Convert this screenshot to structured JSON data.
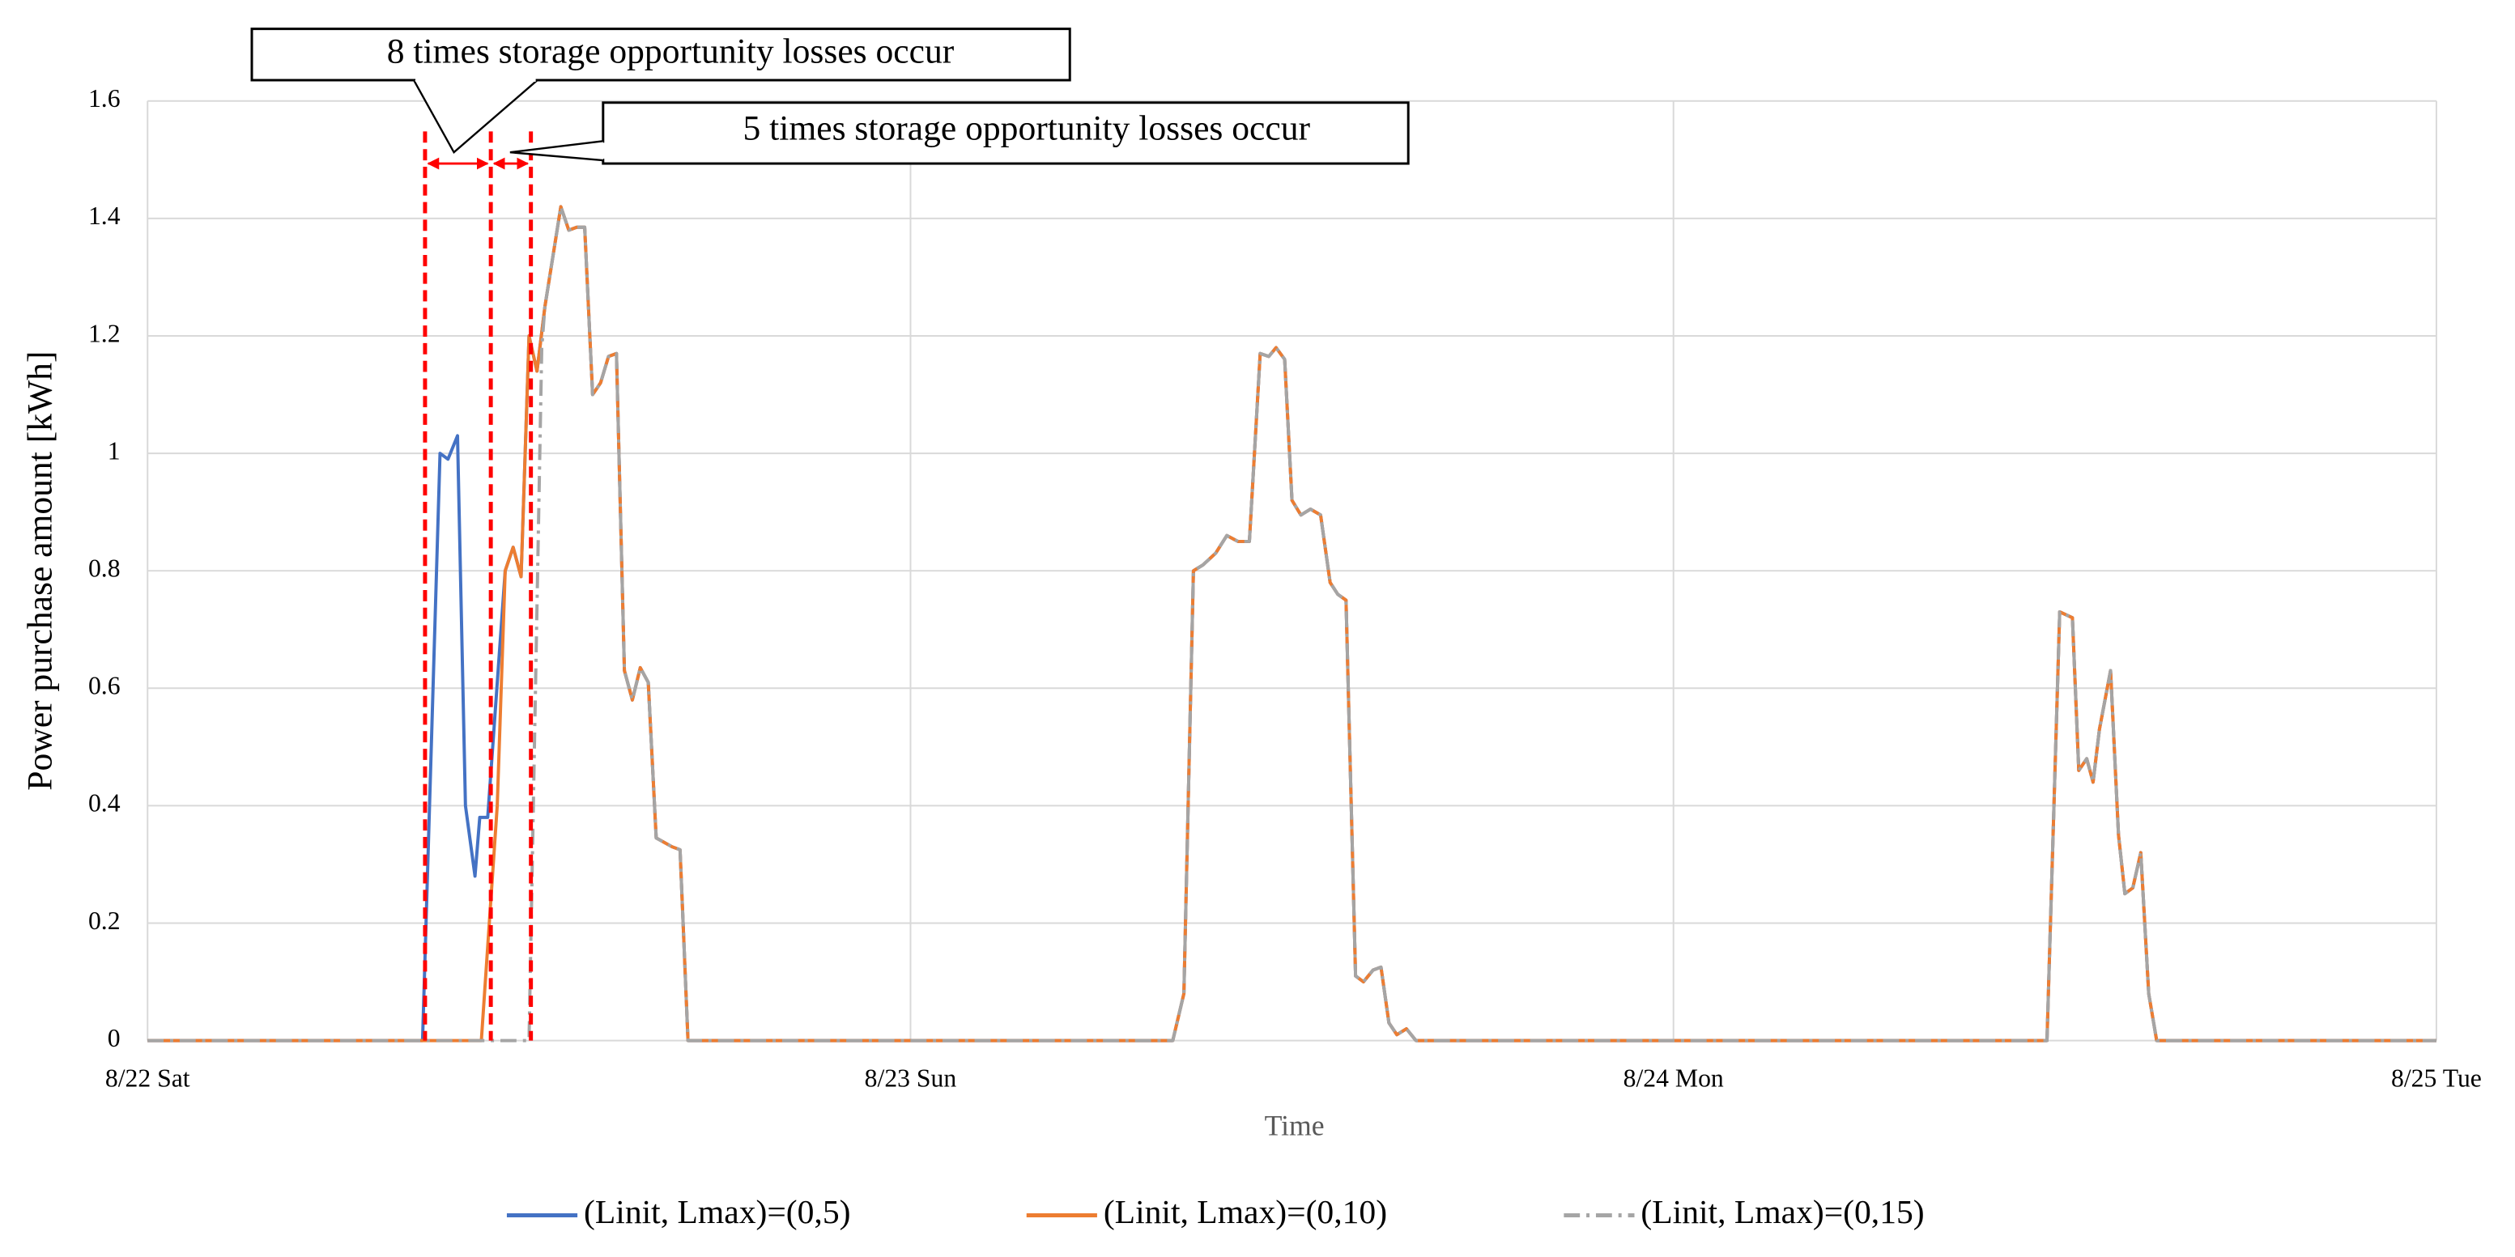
{
  "chart_data": {
    "type": "line",
    "xlabel": "Time",
    "ylabel": "Power purchase amount [kWh]",
    "xlim": [
      0,
      72
    ],
    "xticks": [
      {
        "value": 0,
        "label": "8/22 Sat"
      },
      {
        "value": 24,
        "label": "8/23 Sun"
      },
      {
        "value": 48,
        "label": "8/24 Mon"
      },
      {
        "value": 72,
        "label": "8/25 Tue"
      }
    ],
    "ylim": [
      0,
      1.6
    ],
    "yticks": [
      0,
      0.2,
      0.4,
      0.6,
      0.8,
      1,
      1.2,
      1.4,
      1.6
    ],
    "grid": true,
    "legend": "bottom",
    "annotations": [
      "8 times storage opportunity losses occur",
      "5 times storage opportunity losses occur"
    ],
    "series": [
      {
        "name": "(Linit, Lmax)=(0,5)",
        "color": "#4472c4",
        "style": "solid",
        "x": [
          0,
          8.65,
          9.2,
          9.45,
          9.75,
          10.0,
          10.3,
          10.45,
          10.7,
          11.25,
          11.5,
          11.75,
          12,
          12.25,
          12.5,
          13,
          13.25,
          13.5,
          13.75,
          14,
          14.25,
          14.5,
          14.75,
          15,
          15.25,
          15.5,
          15.75,
          16,
          16.5,
          16.75,
          17,
          32.25,
          32.6,
          32.9,
          33.2,
          33.6,
          33.95,
          34.3,
          34.66,
          35.0,
          35.27,
          35.5,
          35.77,
          36.0,
          36.28,
          36.58,
          36.9,
          37.2,
          37.44,
          37.7,
          38.0,
          38.25,
          38.55,
          38.8,
          39.05,
          39.3,
          39.6,
          39.9,
          59.75,
          60.15,
          60.55,
          60.75,
          61.0,
          61.2,
          61.4,
          61.75,
          62.0,
          62.2,
          62.45,
          62.7,
          62.95,
          63.2,
          72
        ],
        "values": [
          0,
          0,
          1.0,
          0.99,
          1.03,
          0.4,
          0.28,
          0.38,
          0.38,
          0.8,
          0.84,
          0.79,
          1.2,
          1.14,
          1.25,
          1.42,
          1.38,
          1.385,
          1.385,
          1.1,
          1.12,
          1.165,
          1.17,
          0.63,
          0.58,
          0.635,
          0.61,
          0.345,
          0.33,
          0.325,
          0,
          0,
          0.08,
          0.8,
          0.81,
          0.83,
          0.86,
          0.85,
          0.85,
          1.17,
          1.165,
          1.18,
          1.16,
          0.92,
          0.895,
          0.905,
          0.895,
          0.78,
          0.76,
          0.75,
          0.11,
          0.1,
          0.12,
          0.125,
          0.03,
          0.01,
          0.02,
          0,
          0,
          0.73,
          0.72,
          0.46,
          0.48,
          0.44,
          0.53,
          0.63,
          0.35,
          0.25,
          0.26,
          0.32,
          0.08,
          0,
          0
        ]
      },
      {
        "name": "(Linit, Lmax)=(0,10)",
        "color": "#ed7d31",
        "style": "solid",
        "x": [
          0,
          10.5,
          11,
          11.25,
          11.5,
          11.75,
          12,
          12.25,
          12.5,
          13,
          13.25,
          13.5,
          13.75,
          14,
          14.25,
          14.5,
          14.75,
          15,
          15.25,
          15.5,
          15.75,
          16,
          16.5,
          16.75,
          17,
          32.25,
          32.6,
          32.9,
          33.2,
          33.6,
          33.95,
          34.3,
          34.66,
          35.0,
          35.27,
          35.5,
          35.77,
          36.0,
          36.28,
          36.58,
          36.9,
          37.2,
          37.44,
          37.7,
          38.0,
          38.25,
          38.55,
          38.8,
          39.05,
          39.3,
          39.6,
          39.9,
          59.75,
          60.15,
          60.55,
          60.75,
          61.0,
          61.2,
          61.4,
          61.75,
          62.0,
          62.2,
          62.45,
          62.7,
          62.95,
          63.2,
          72
        ],
        "values": [
          0,
          0,
          0.4,
          0.8,
          0.84,
          0.79,
          1.2,
          1.14,
          1.25,
          1.42,
          1.38,
          1.385,
          1.385,
          1.1,
          1.12,
          1.165,
          1.17,
          0.63,
          0.58,
          0.635,
          0.61,
          0.345,
          0.33,
          0.325,
          0,
          0,
          0.08,
          0.8,
          0.81,
          0.83,
          0.86,
          0.85,
          0.85,
          1.17,
          1.165,
          1.18,
          1.16,
          0.92,
          0.895,
          0.905,
          0.895,
          0.78,
          0.76,
          0.75,
          0.11,
          0.1,
          0.12,
          0.125,
          0.03,
          0.01,
          0.02,
          0,
          0,
          0.73,
          0.72,
          0.46,
          0.48,
          0.44,
          0.53,
          0.63,
          0.35,
          0.25,
          0.26,
          0.32,
          0.08,
          0,
          0
        ]
      },
      {
        "name": "(Linit, Lmax)=(0,15)",
        "color": "#a5a5a5",
        "style": "dash-dot",
        "x": [
          0,
          12.0,
          12.4,
          12.5,
          13,
          13.25,
          13.5,
          13.75,
          14,
          14.25,
          14.5,
          14.75,
          15,
          15.25,
          15.5,
          15.75,
          16,
          16.5,
          16.75,
          17,
          32.25,
          32.6,
          32.9,
          33.2,
          33.6,
          33.95,
          34.3,
          34.66,
          35.0,
          35.27,
          35.5,
          35.77,
          36.0,
          36.28,
          36.58,
          36.9,
          37.2,
          37.44,
          37.7,
          38.0,
          38.25,
          38.55,
          38.8,
          39.05,
          39.3,
          39.6,
          39.9,
          59.75,
          60.15,
          60.55,
          60.75,
          61.0,
          61.2,
          61.4,
          61.75,
          62.0,
          62.2,
          62.45,
          62.7,
          62.95,
          63.2,
          72
        ],
        "values": [
          0,
          0,
          1.18,
          1.25,
          1.42,
          1.38,
          1.385,
          1.385,
          1.1,
          1.12,
          1.165,
          1.17,
          0.63,
          0.58,
          0.635,
          0.61,
          0.345,
          0.33,
          0.325,
          0,
          0,
          0.08,
          0.8,
          0.81,
          0.83,
          0.86,
          0.85,
          0.85,
          1.17,
          1.165,
          1.18,
          1.16,
          0.92,
          0.895,
          0.905,
          0.895,
          0.78,
          0.76,
          0.75,
          0.11,
          0.1,
          0.12,
          0.125,
          0.03,
          0.01,
          0.02,
          0,
          0,
          0.73,
          0.72,
          0.46,
          0.48,
          0.44,
          0.53,
          0.63,
          0.35,
          0.25,
          0.26,
          0.32,
          0.08,
          0,
          0
        ]
      }
    ]
  }
}
